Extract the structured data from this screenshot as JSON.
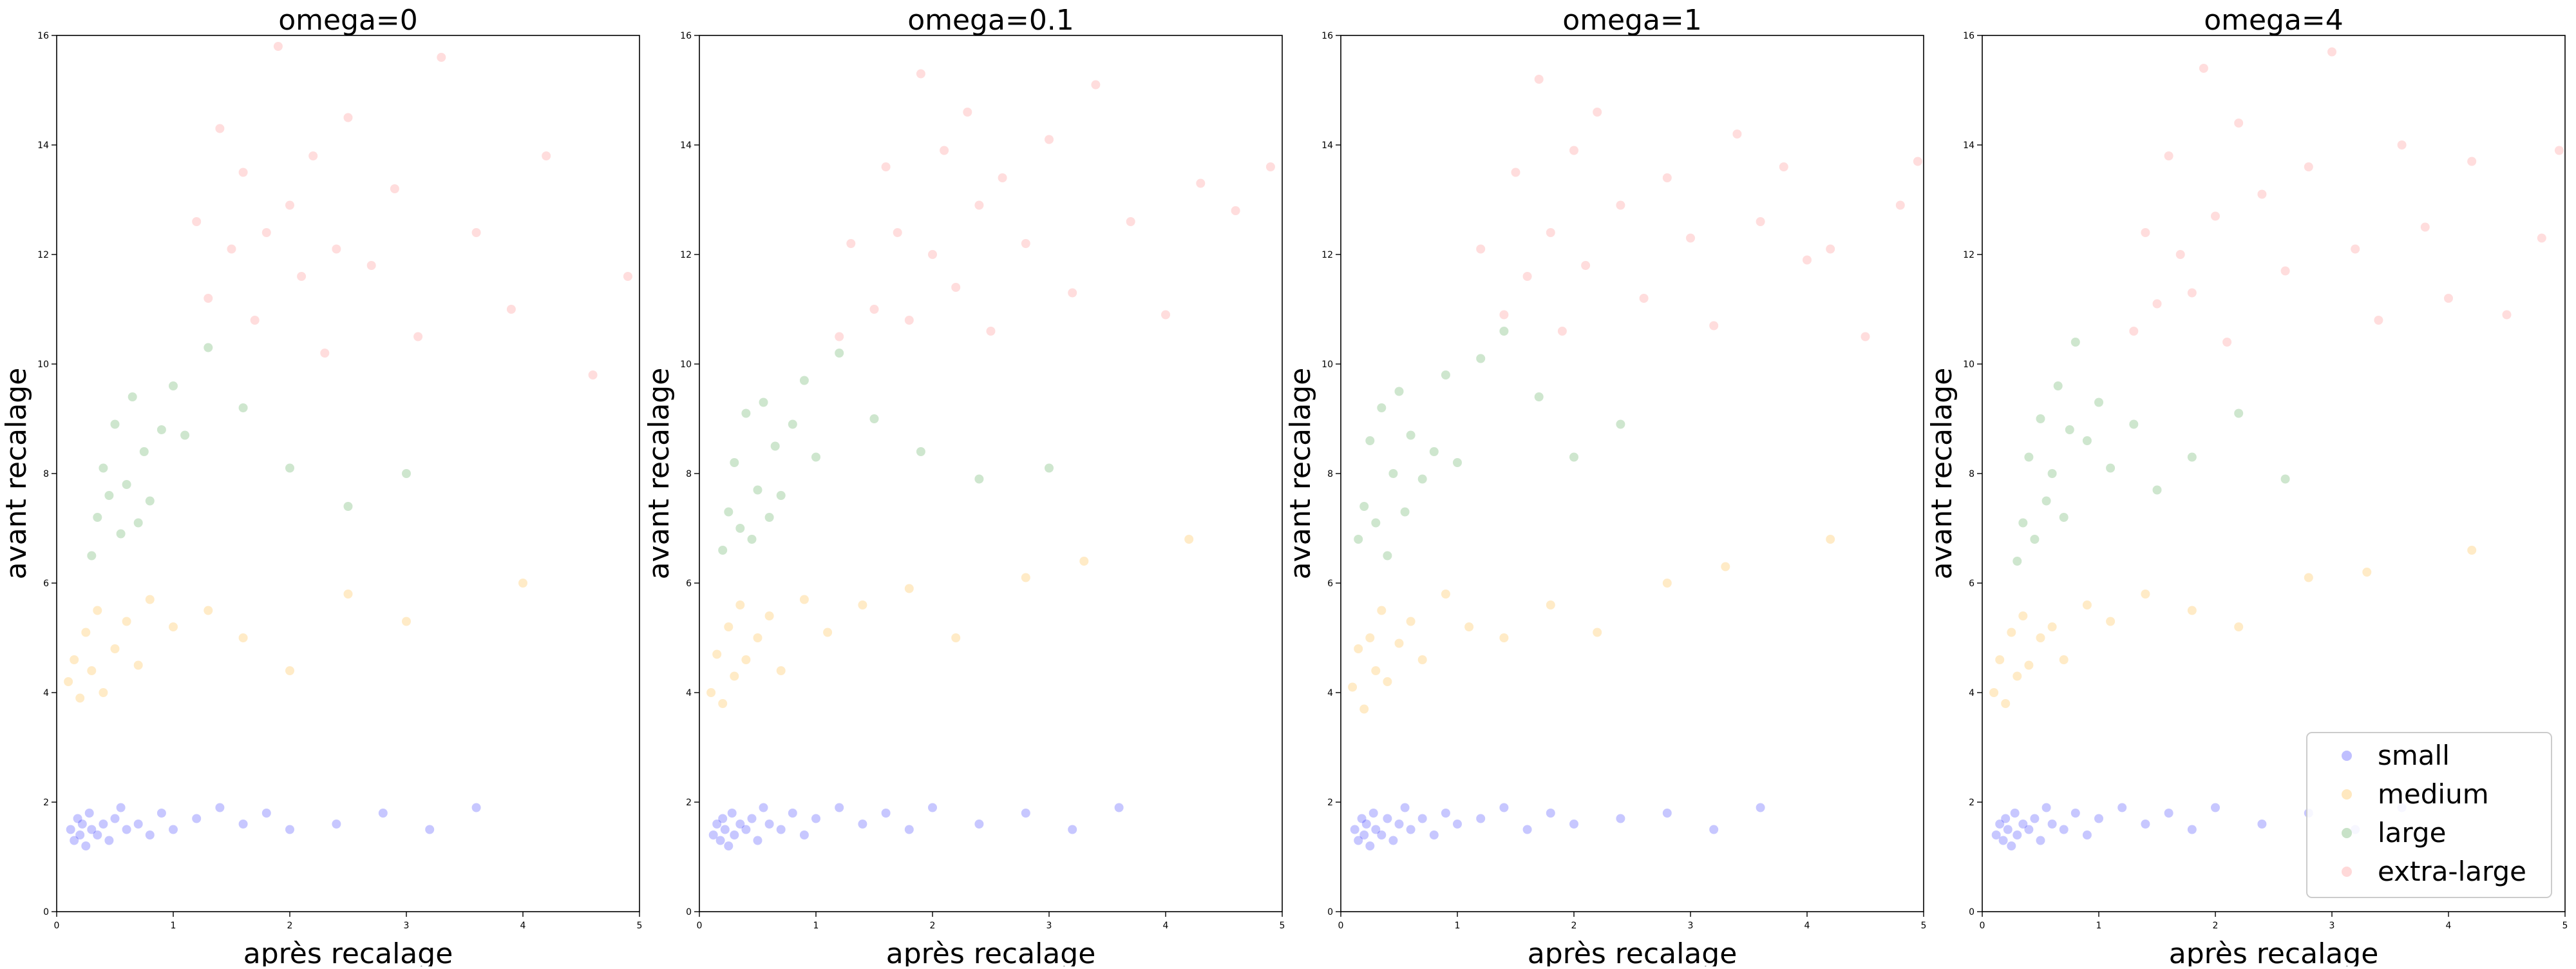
{
  "figure": {
    "panels": [
      {
        "title": "omega=0"
      },
      {
        "title": "omega=0.1"
      },
      {
        "title": "omega=1"
      },
      {
        "title": "omega=4"
      }
    ],
    "xlabel": "après recalage",
    "ylabel": "avant recalage"
  },
  "legend": {
    "placement": "lower-right of last panel",
    "entries": [
      {
        "label": "small",
        "color": "#0000ff"
      },
      {
        "label": "medium",
        "color": "#ffa500"
      },
      {
        "label": "large",
        "color": "#228b22"
      },
      {
        "label": "extra-large",
        "color": "#ff6666"
      }
    ]
  },
  "chart_data": [
    {
      "type": "scatter",
      "title": "omega=0",
      "xlabel": "après recalage",
      "ylabel": "avant recalage",
      "xlim": [
        0,
        5
      ],
      "ylim": [
        0,
        16
      ],
      "xticks": [
        0,
        1,
        2,
        3,
        4,
        5
      ],
      "yticks": [
        0,
        2,
        4,
        6,
        8,
        10,
        12,
        14,
        16
      ],
      "grid": false,
      "legend": false,
      "series": [
        {
          "name": "small",
          "color": "#0000ff",
          "x": [
            0.12,
            0.15,
            0.18,
            0.2,
            0.22,
            0.25,
            0.28,
            0.3,
            0.35,
            0.4,
            0.45,
            0.5,
            0.55,
            0.6,
            0.7,
            0.8,
            0.9,
            1.0,
            1.2,
            1.4,
            1.6,
            1.8,
            2.0,
            2.4,
            2.8,
            3.2,
            3.6
          ],
          "y": [
            1.5,
            1.3,
            1.7,
            1.4,
            1.6,
            1.2,
            1.8,
            1.5,
            1.4,
            1.6,
            1.3,
            1.7,
            1.9,
            1.5,
            1.6,
            1.4,
            1.8,
            1.5,
            1.7,
            1.9,
            1.6,
            1.8,
            1.5,
            1.6,
            1.8,
            1.5,
            1.9
          ]
        },
        {
          "name": "medium",
          "color": "#ffa500",
          "x": [
            0.1,
            0.15,
            0.2,
            0.25,
            0.3,
            0.35,
            0.4,
            0.5,
            0.6,
            0.7,
            0.8,
            1.0,
            1.3,
            1.6,
            2.0,
            2.5,
            3.0,
            4.0
          ],
          "y": [
            4.2,
            4.6,
            3.9,
            5.1,
            4.4,
            5.5,
            4.0,
            4.8,
            5.3,
            4.5,
            5.7,
            5.2,
            5.5,
            5.0,
            4.4,
            5.8,
            5.3,
            6.0
          ]
        },
        {
          "name": "large",
          "color": "#228b22",
          "x": [
            0.3,
            0.35,
            0.4,
            0.45,
            0.5,
            0.55,
            0.6,
            0.65,
            0.7,
            0.75,
            0.8,
            0.9,
            1.0,
            1.1,
            1.3,
            1.6,
            2.0,
            2.5,
            3.0
          ],
          "y": [
            6.5,
            7.2,
            8.1,
            7.6,
            8.9,
            6.9,
            7.8,
            9.4,
            7.1,
            8.4,
            7.5,
            8.8,
            9.6,
            8.7,
            10.3,
            9.2,
            8.1,
            7.4,
            8.0
          ]
        },
        {
          "name": "extra-large",
          "color": "#ff6666",
          "x": [
            1.2,
            1.3,
            1.4,
            1.5,
            1.6,
            1.7,
            1.8,
            1.9,
            2.0,
            2.1,
            2.2,
            2.3,
            2.4,
            2.5,
            2.7,
            2.9,
            3.1,
            3.3,
            3.6,
            3.9,
            4.2,
            4.6,
            4.9
          ],
          "y": [
            12.6,
            11.2,
            14.3,
            12.1,
            13.5,
            10.8,
            12.4,
            15.8,
            12.9,
            11.6,
            13.8,
            10.2,
            12.1,
            14.5,
            11.8,
            13.2,
            10.5,
            15.6,
            12.4,
            11.0,
            13.8,
            9.8,
            11.6
          ]
        }
      ]
    },
    {
      "type": "scatter",
      "title": "omega=0.1",
      "xlabel": "après recalage",
      "ylabel": "avant recalage",
      "xlim": [
        0,
        5
      ],
      "ylim": [
        0,
        16
      ],
      "xticks": [
        0,
        1,
        2,
        3,
        4,
        5
      ],
      "yticks": [
        0,
        2,
        4,
        6,
        8,
        10,
        12,
        14,
        16
      ],
      "grid": false,
      "legend": false,
      "series": [
        {
          "name": "small",
          "color": "#0000ff",
          "x": [
            0.12,
            0.15,
            0.18,
            0.2,
            0.22,
            0.25,
            0.28,
            0.3,
            0.35,
            0.4,
            0.45,
            0.5,
            0.55,
            0.6,
            0.7,
            0.8,
            0.9,
            1.0,
            1.2,
            1.4,
            1.6,
            1.8,
            2.0,
            2.4,
            2.8,
            3.2,
            3.6
          ],
          "y": [
            1.4,
            1.6,
            1.3,
            1.7,
            1.5,
            1.2,
            1.8,
            1.4,
            1.6,
            1.5,
            1.7,
            1.3,
            1.9,
            1.6,
            1.5,
            1.8,
            1.4,
            1.7,
            1.9,
            1.6,
            1.8,
            1.5,
            1.9,
            1.6,
            1.8,
            1.5,
            1.9
          ]
        },
        {
          "name": "medium",
          "color": "#ffa500",
          "x": [
            0.1,
            0.15,
            0.2,
            0.25,
            0.3,
            0.35,
            0.4,
            0.5,
            0.6,
            0.7,
            0.9,
            1.1,
            1.4,
            1.8,
            2.2,
            2.8,
            3.3,
            4.2
          ],
          "y": [
            4.0,
            4.7,
            3.8,
            5.2,
            4.3,
            5.6,
            4.6,
            5.0,
            5.4,
            4.4,
            5.7,
            5.1,
            5.6,
            5.9,
            5.0,
            6.1,
            6.4,
            6.8
          ]
        },
        {
          "name": "large",
          "color": "#228b22",
          "x": [
            0.2,
            0.25,
            0.3,
            0.35,
            0.4,
            0.45,
            0.5,
            0.55,
            0.6,
            0.65,
            0.7,
            0.8,
            0.9,
            1.0,
            1.2,
            1.5,
            1.9,
            2.4,
            3.0
          ],
          "y": [
            6.6,
            7.3,
            8.2,
            7.0,
            9.1,
            6.8,
            7.7,
            9.3,
            7.2,
            8.5,
            7.6,
            8.9,
            9.7,
            8.3,
            10.2,
            9.0,
            8.4,
            7.9,
            8.1
          ]
        },
        {
          "name": "extra-large",
          "color": "#ff6666",
          "x": [
            1.2,
            1.3,
            1.5,
            1.6,
            1.7,
            1.8,
            1.9,
            2.0,
            2.1,
            2.2,
            2.3,
            2.4,
            2.5,
            2.6,
            2.8,
            3.0,
            3.2,
            3.4,
            3.7,
            4.0,
            4.3,
            4.6,
            4.9
          ],
          "y": [
            10.5,
            12.2,
            11.0,
            13.6,
            12.4,
            10.8,
            15.3,
            12.0,
            13.9,
            11.4,
            14.6,
            12.9,
            10.6,
            13.4,
            12.2,
            14.1,
            11.3,
            15.1,
            12.6,
            10.9,
            13.3,
            12.8,
            13.6
          ]
        }
      ]
    },
    {
      "type": "scatter",
      "title": "omega=1",
      "xlabel": "après recalage",
      "ylabel": "avant recalage",
      "xlim": [
        0,
        5
      ],
      "ylim": [
        0,
        16
      ],
      "xticks": [
        0,
        1,
        2,
        3,
        4,
        5
      ],
      "yticks": [
        0,
        2,
        4,
        6,
        8,
        10,
        12,
        14,
        16
      ],
      "grid": false,
      "legend": false,
      "series": [
        {
          "name": "small",
          "color": "#0000ff",
          "x": [
            0.12,
            0.15,
            0.18,
            0.2,
            0.22,
            0.25,
            0.28,
            0.3,
            0.35,
            0.4,
            0.45,
            0.5,
            0.55,
            0.6,
            0.7,
            0.8,
            0.9,
            1.0,
            1.2,
            1.4,
            1.6,
            1.8,
            2.0,
            2.4,
            2.8,
            3.2,
            3.6
          ],
          "y": [
            1.5,
            1.3,
            1.7,
            1.4,
            1.6,
            1.2,
            1.8,
            1.5,
            1.4,
            1.7,
            1.3,
            1.6,
            1.9,
            1.5,
            1.7,
            1.4,
            1.8,
            1.6,
            1.7,
            1.9,
            1.5,
            1.8,
            1.6,
            1.7,
            1.8,
            1.5,
            1.9
          ]
        },
        {
          "name": "medium",
          "color": "#ffa500",
          "x": [
            0.1,
            0.15,
            0.2,
            0.25,
            0.3,
            0.35,
            0.4,
            0.5,
            0.6,
            0.7,
            0.9,
            1.1,
            1.4,
            1.8,
            2.2,
            2.8,
            3.3,
            4.2
          ],
          "y": [
            4.1,
            4.8,
            3.7,
            5.0,
            4.4,
            5.5,
            4.2,
            4.9,
            5.3,
            4.6,
            5.8,
            5.2,
            5.0,
            5.6,
            5.1,
            6.0,
            6.3,
            6.8
          ]
        },
        {
          "name": "large",
          "color": "#228b22",
          "x": [
            0.15,
            0.2,
            0.25,
            0.3,
            0.35,
            0.4,
            0.45,
            0.5,
            0.55,
            0.6,
            0.7,
            0.8,
            0.9,
            1.0,
            1.2,
            1.4,
            1.7,
            2.0,
            2.4
          ],
          "y": [
            6.8,
            7.4,
            8.6,
            7.1,
            9.2,
            6.5,
            8.0,
            9.5,
            7.3,
            8.7,
            7.9,
            8.4,
            9.8,
            8.2,
            10.1,
            10.6,
            9.4,
            8.3,
            8.9
          ]
        },
        {
          "name": "extra-large",
          "color": "#ff6666",
          "x": [
            1.2,
            1.4,
            1.5,
            1.6,
            1.7,
            1.8,
            1.9,
            2.0,
            2.1,
            2.2,
            2.4,
            2.6,
            2.8,
            3.0,
            3.2,
            3.4,
            3.6,
            3.8,
            4.0,
            4.2,
            4.5,
            4.8,
            4.95
          ],
          "y": [
            12.1,
            10.9,
            13.5,
            11.6,
            15.2,
            12.4,
            10.6,
            13.9,
            11.8,
            14.6,
            12.9,
            11.2,
            13.4,
            12.3,
            10.7,
            14.2,
            12.6,
            13.6,
            11.9,
            12.1,
            10.5,
            12.9,
            13.7
          ]
        }
      ]
    },
    {
      "type": "scatter",
      "title": "omega=4",
      "xlabel": "après recalage",
      "ylabel": "avant recalage",
      "xlim": [
        0,
        5
      ],
      "ylim": [
        0,
        16
      ],
      "xticks": [
        0,
        1,
        2,
        3,
        4,
        5
      ],
      "yticks": [
        0,
        2,
        4,
        6,
        8,
        10,
        12,
        14,
        16
      ],
      "grid": false,
      "legend": true,
      "legend_position": "lower-right",
      "series": [
        {
          "name": "small",
          "color": "#0000ff",
          "x": [
            0.12,
            0.15,
            0.18,
            0.2,
            0.22,
            0.25,
            0.28,
            0.3,
            0.35,
            0.4,
            0.45,
            0.5,
            0.55,
            0.6,
            0.7,
            0.8,
            0.9,
            1.0,
            1.2,
            1.4,
            1.6,
            1.8,
            2.0,
            2.4,
            2.8,
            3.2,
            3.6
          ],
          "y": [
            1.4,
            1.6,
            1.3,
            1.7,
            1.5,
            1.2,
            1.8,
            1.4,
            1.6,
            1.5,
            1.7,
            1.3,
            1.9,
            1.6,
            1.5,
            1.8,
            1.4,
            1.7,
            1.9,
            1.6,
            1.8,
            1.5,
            1.9,
            1.6,
            1.8,
            1.5,
            1.9
          ]
        },
        {
          "name": "medium",
          "color": "#ffa500",
          "x": [
            0.1,
            0.15,
            0.2,
            0.25,
            0.3,
            0.35,
            0.4,
            0.5,
            0.6,
            0.7,
            0.9,
            1.1,
            1.4,
            1.8,
            2.2,
            2.8,
            3.3,
            4.2
          ],
          "y": [
            4.0,
            4.6,
            3.8,
            5.1,
            4.3,
            5.4,
            4.5,
            5.0,
            5.2,
            4.6,
            5.6,
            5.3,
            5.8,
            5.5,
            5.2,
            6.1,
            6.2,
            6.6
          ]
        },
        {
          "name": "large",
          "color": "#228b22",
          "x": [
            0.3,
            0.35,
            0.4,
            0.45,
            0.5,
            0.55,
            0.6,
            0.65,
            0.7,
            0.75,
            0.8,
            0.9,
            1.0,
            1.1,
            1.3,
            1.5,
            1.8,
            2.2,
            2.6
          ],
          "y": [
            6.4,
            7.1,
            8.3,
            6.8,
            9.0,
            7.5,
            8.0,
            9.6,
            7.2,
            8.8,
            10.4,
            8.6,
            9.3,
            8.1,
            8.9,
            7.7,
            8.3,
            9.1,
            7.9
          ]
        },
        {
          "name": "extra-large",
          "color": "#ff6666",
          "x": [
            1.3,
            1.4,
            1.5,
            1.6,
            1.7,
            1.8,
            1.9,
            2.0,
            2.1,
            2.2,
            2.4,
            2.6,
            2.8,
            3.0,
            3.2,
            3.4,
            3.6,
            3.8,
            4.0,
            4.2,
            4.5,
            4.8,
            4.95
          ],
          "y": [
            10.6,
            12.4,
            11.1,
            13.8,
            12.0,
            11.3,
            15.4,
            12.7,
            10.4,
            14.4,
            13.1,
            11.7,
            13.6,
            15.7,
            12.1,
            10.8,
            14.0,
            12.5,
            11.2,
            13.7,
            10.9,
            12.3,
            13.9
          ]
        }
      ]
    }
  ]
}
